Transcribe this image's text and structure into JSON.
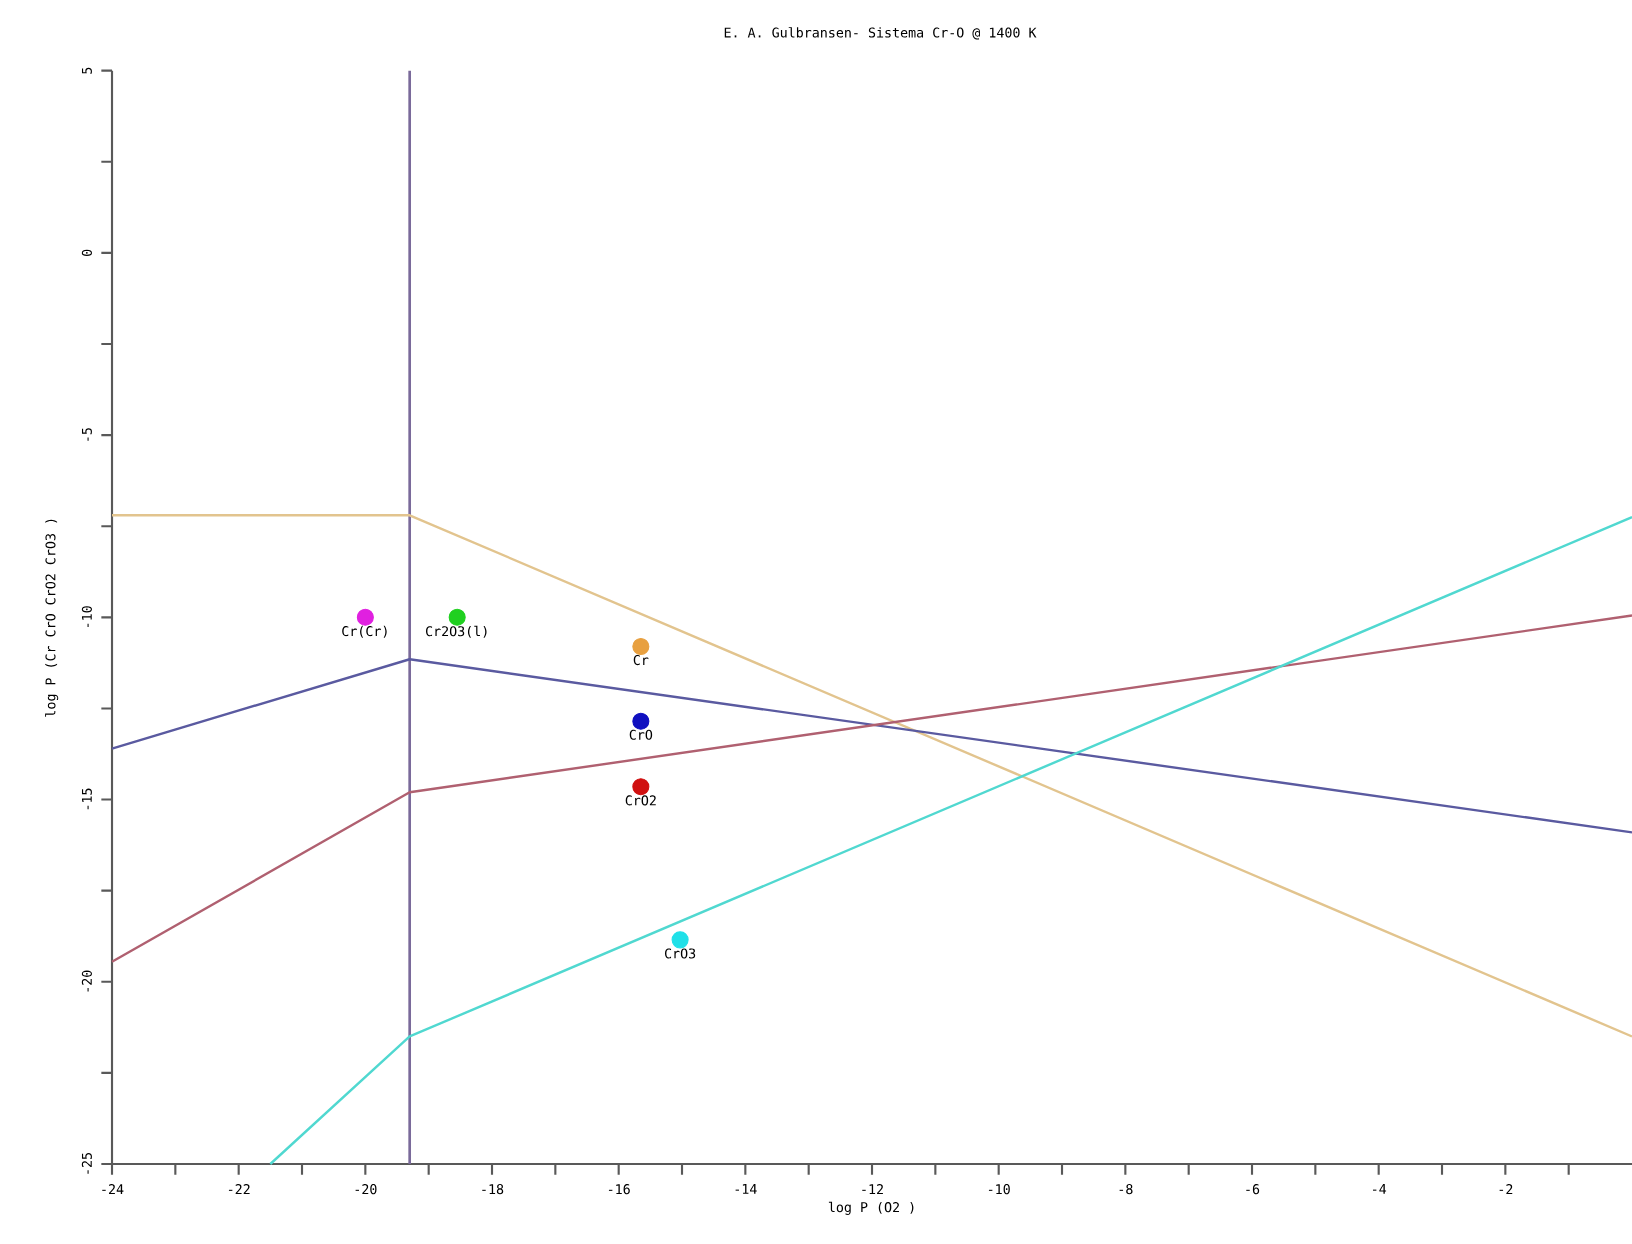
{
  "chart_data": {
    "type": "line",
    "title": "E. A. Gulbransen- Sistema Cr-O @ 1400 K",
    "xlabel": "log  P (O2 )",
    "ylabel": "log  P (Cr CrO CrO2 CrO3 )",
    "xlim": [
      -24,
      0
    ],
    "ylim": [
      -25,
      5
    ],
    "xticks": [
      -24,
      {
        "value": -23,
        "label": null
      },
      -22,
      {
        "value": -21,
        "label": null
      },
      -20,
      {
        "value": -19,
        "label": null
      },
      -18,
      {
        "value": -17,
        "label": null
      },
      -16,
      {
        "value": -15,
        "label": null
      },
      -14,
      {
        "value": -13,
        "label": null
      },
      -12,
      {
        "value": -11,
        "label": null
      },
      -10,
      {
        "value": -9,
        "label": null
      },
      -8,
      {
        "value": -7,
        "label": null
      },
      -6,
      {
        "value": -5,
        "label": null
      },
      -4,
      {
        "value": -3,
        "label": null
      },
      -2,
      {
        "value": -1,
        "label": null
      }
    ],
    "yticks": [
      -25,
      {
        "value": -22.5,
        "label": null
      },
      -20,
      {
        "value": -17.5,
        "label": null
      },
      -15,
      {
        "value": -12.5,
        "label": null
      },
      -10,
      {
        "value": -7.5,
        "label": null
      },
      -5,
      {
        "value": -2.5,
        "label": null
      },
      0,
      {
        "value": 2.5,
        "label": null
      },
      5
    ],
    "grid": false,
    "ref_lines": [
      {
        "axis": "x",
        "value": -19.3,
        "color": "#7a6a9a"
      }
    ],
    "series": [
      {
        "color": "#e2c48e",
        "x": [
          -24,
          -19.3,
          0
        ],
        "values": [
          -7.2,
          -7.2,
          -21.5
        ]
      },
      {
        "color": "#5a5aa0",
        "x": [
          -24,
          -19.3,
          0
        ],
        "values": [
          -13.6,
          -11.15,
          -15.9
        ]
      },
      {
        "color": "#b06070",
        "x": [
          -24,
          -19.3,
          0
        ],
        "values": [
          -19.45,
          -14.8,
          -9.95
        ]
      },
      {
        "color": "#50d8d0",
        "x": [
          -21.5,
          -19.3,
          0
        ],
        "values": [
          -25,
          -21.5,
          -7.25
        ]
      },
      {
        "type": "scatter",
        "name": "Cr(Cr)",
        "color": "#e020e0",
        "x": [
          -20.0
        ],
        "values": [
          -10.0
        ]
      },
      {
        "type": "scatter",
        "name": "Cr2O3(l)",
        "color": "#20d020",
        "x": [
          -18.55
        ],
        "values": [
          -10.0
        ]
      },
      {
        "type": "scatter",
        "name": "Cr",
        "color": "#e8a040",
        "x": [
          -15.65
        ],
        "values": [
          -10.8
        ]
      },
      {
        "type": "scatter",
        "name": "CrO",
        "color": "#1010c0",
        "x": [
          -15.65
        ],
        "values": [
          -12.85
        ]
      },
      {
        "type": "scatter",
        "name": "CrO2",
        "color": "#d01010",
        "x": [
          -15.65
        ],
        "values": [
          -14.65
        ]
      },
      {
        "type": "scatter",
        "name": "CrO3",
        "color": "#20e0e8",
        "x": [
          -15.03
        ],
        "values": [
          -18.85
        ]
      }
    ]
  }
}
